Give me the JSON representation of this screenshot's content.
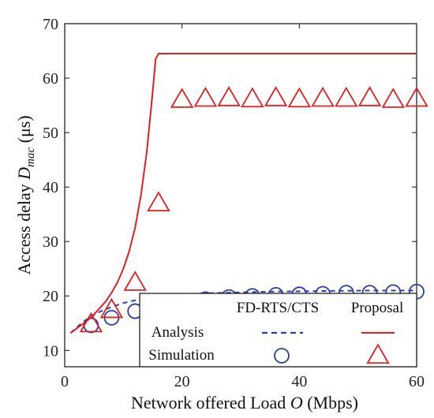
{
  "chart_data": {
    "type": "line",
    "xlabel": {
      "text": "Network offered Load ",
      "var": "O",
      "unit": " (Mbps)"
    },
    "ylabel": {
      "text": "Access delay ",
      "var": "D",
      "sub": "mac",
      "unit": " (μs)"
    },
    "xlim": [
      0,
      60
    ],
    "ylim": [
      7,
      70
    ],
    "xticks": [
      0,
      20,
      40,
      60
    ],
    "yticks": [
      10,
      20,
      30,
      40,
      50,
      60,
      70
    ],
    "grid": false,
    "legend": {
      "placement": "bottom-right",
      "col_headers": [
        "FD-RTS/CTS",
        "Proposal"
      ],
      "row_labels": [
        "Analysis",
        "Simulation"
      ]
    },
    "series": [
      {
        "scheme": "FD-RTS/CTS",
        "kind": "Analysis",
        "style": "dashed-line",
        "color": "#2a3fa8",
        "x": [
          1,
          2,
          3,
          4,
          5,
          6,
          8,
          10,
          12,
          14,
          16,
          18,
          20,
          24,
          28,
          32,
          36,
          40,
          44,
          48,
          52,
          56,
          60
        ],
        "y": [
          13.2,
          14.2,
          15.1,
          15.9,
          16.5,
          17.1,
          18.0,
          18.7,
          19.2,
          19.6,
          19.9,
          20.1,
          20.3,
          20.5,
          20.6,
          20.7,
          20.8,
          20.85,
          20.9,
          20.95,
          21.0,
          21.0,
          21.0
        ]
      },
      {
        "scheme": "FD-RTS/CTS",
        "kind": "Simulation",
        "style": "circle-markers",
        "color": "#2a3fa8",
        "x": [
          4.5,
          8,
          12,
          16,
          20,
          24,
          28,
          32,
          36,
          40,
          44,
          48,
          52,
          56,
          60
        ],
        "y": [
          14.6,
          16.0,
          17.2,
          18.0,
          18.8,
          19.4,
          19.8,
          20.0,
          20.2,
          20.3,
          20.4,
          20.6,
          20.6,
          20.7,
          20.8
        ]
      },
      {
        "scheme": "Proposal",
        "kind": "Analysis",
        "style": "solid-line",
        "color": "#e02020",
        "x": [
          1,
          2,
          3,
          4,
          5,
          6,
          7,
          8,
          9,
          10,
          11,
          12,
          13,
          14,
          15,
          15.5,
          16,
          17,
          20,
          30,
          40,
          50,
          60
        ],
        "y": [
          13.2,
          14.0,
          14.8,
          15.6,
          16.6,
          17.8,
          19.0,
          20.6,
          22.5,
          25.0,
          28.2,
          32.5,
          38.5,
          46.5,
          57.5,
          63.5,
          64.5,
          64.5,
          64.5,
          64.5,
          64.5,
          64.5,
          64.5
        ]
      },
      {
        "scheme": "Proposal",
        "kind": "Simulation",
        "style": "triangle-markers",
        "color": "#e02020",
        "x": [
          4.5,
          8,
          12,
          16,
          20,
          24,
          28,
          32,
          36,
          40,
          44,
          48,
          52,
          56,
          60
        ],
        "y": [
          14.8,
          17.4,
          22.4,
          37.0,
          56.0,
          56.2,
          56.3,
          56.1,
          56.3,
          56.1,
          56.2,
          56.2,
          56.3,
          56.0,
          56.2
        ]
      }
    ]
  }
}
